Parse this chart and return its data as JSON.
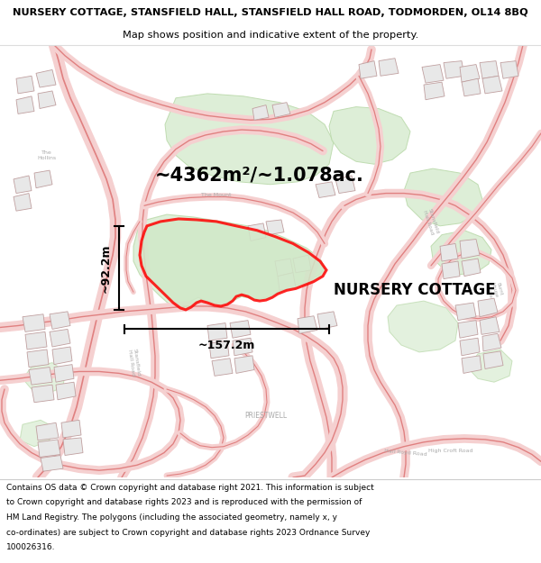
{
  "title_line1": "NURSERY COTTAGE, STANSFIELD HALL, STANSFIELD HALL ROAD, TODMORDEN, OL14 8BQ",
  "title_line2": "Map shows position and indicative extent of the property.",
  "property_label": "NURSERY COTTAGE",
  "area_label": "~4362m²/~1.078ac.",
  "width_label": "~157.2m",
  "height_label": "~92.2m",
  "footer_lines": [
    "Contains OS data © Crown copyright and database right 2021. This information is subject",
    "to Crown copyright and database rights 2023 and is reproduced with the permission of",
    "HM Land Registry. The polygons (including the associated geometry, namely x, y",
    "co-ordinates) are subject to Crown copyright and database rights 2023 Ordnance Survey",
    "100026316."
  ],
  "map_bg": "#ffffff",
  "road_fill": "#f5d0d0",
  "road_edge": "#e08080",
  "road_edge2": "#cc7777",
  "green_fill": "#d8ecd0",
  "green_edge": "#b8d8a8",
  "building_fill": "#e8e8e8",
  "building_edge": "#c0a0a0",
  "property_fill": "#d0e8c8",
  "property_outline": "#ff0000",
  "label_color": "#aaaaaa",
  "footer_bg": "#ffffff",
  "title_bg": "#ffffff"
}
